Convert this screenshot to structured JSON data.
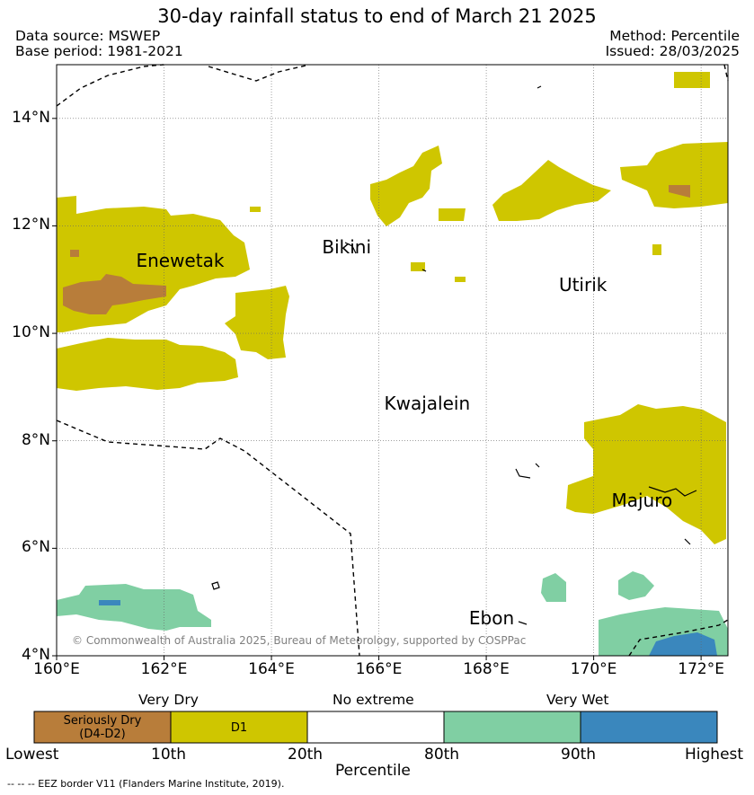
{
  "header": {
    "title": "30-day rainfall status to end of March 21 2025",
    "data_source": "Data source: MSWEP",
    "base_period": "Base period: 1981-2021",
    "method": "Method: Percentile",
    "issued": "Issued: 28/03/2025"
  },
  "map": {
    "lon_range": [
      160,
      172.5
    ],
    "lat_range": [
      4,
      15
    ],
    "x_ticks": [
      "160°E",
      "162°E",
      "164°E",
      "166°E",
      "168°E",
      "170°E",
      "172°E"
    ],
    "y_ticks": [
      "4°N",
      "6°N",
      "8°N",
      "10°N",
      "12°N",
      "14°N"
    ],
    "grid": true,
    "places": [
      {
        "name": "Enewetak",
        "lon": 162.3,
        "lat": 11.35
      },
      {
        "name": "Bikini",
        "lon": 165.4,
        "lat": 11.6
      },
      {
        "name": "Utirik",
        "lon": 169.8,
        "lat": 10.9
      },
      {
        "name": "Kwajalein",
        "lon": 166.9,
        "lat": 8.7
      },
      {
        "name": "Majuro",
        "lon": 170.9,
        "lat": 6.9
      },
      {
        "name": "Ebon",
        "lon": 168.1,
        "lat": 4.7
      }
    ],
    "copyright": "© Commonwealth of Australia 2025, Bureau of Meteorology, supported by COSPPac",
    "colors": {
      "seriously_dry": "#b87d3a",
      "d1": "#cfc600",
      "no_extreme": "#ffffff",
      "very_wet": "#80cfa3",
      "highest": "#3a87bd"
    }
  },
  "legend": {
    "group_labels": [
      "Very Dry",
      "No extreme",
      "Very Wet"
    ],
    "boxes": [
      "Seriously Dry\n(D4-D2)",
      "D1",
      "",
      "",
      ""
    ],
    "ticks": [
      "Lowest",
      "10th",
      "20th",
      "80th",
      "90th",
      "Highest"
    ],
    "axis_label": "Percentile"
  },
  "footnote": "-- -- -- EEZ border V11 (Flanders Marine Institute, 2019)."
}
